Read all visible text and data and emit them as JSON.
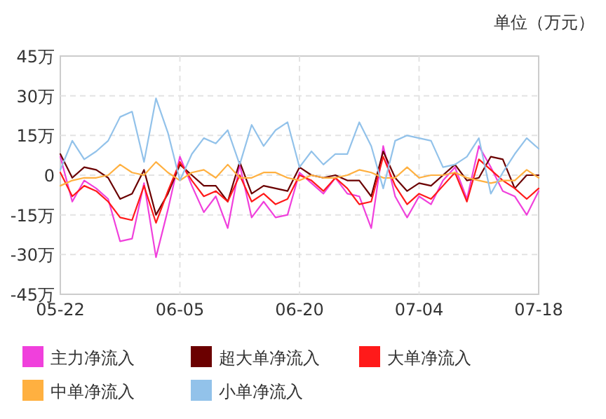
{
  "chart_data": {
    "type": "line",
    "categories": [
      "05-22",
      null,
      null,
      null,
      null,
      null,
      null,
      null,
      null,
      null,
      "06-05",
      null,
      null,
      null,
      null,
      null,
      null,
      null,
      null,
      null,
      "06-20",
      null,
      null,
      null,
      null,
      null,
      null,
      null,
      null,
      null,
      "07-04",
      null,
      null,
      null,
      null,
      null,
      null,
      null,
      null,
      null,
      "07-18"
    ],
    "ylim": [
      -45,
      45
    ],
    "yticks": [
      {
        "value": -45,
        "label": "-45万"
      },
      {
        "value": -30,
        "label": "-30万"
      },
      {
        "value": -15,
        "label": "-15万"
      },
      0,
      {
        "value": 15,
        "label": "15万"
      },
      {
        "value": 30,
        "label": "30万"
      },
      {
        "value": 45,
        "label": "45万"
      }
    ],
    "grid": true,
    "legend": "bottom",
    "marker": "none",
    "line_style": "solid",
    "annotations": [
      "单位（万元）"
    ],
    "series": [
      {
        "name": "主力净流入",
        "color": "#f040dc",
        "values": [
          7,
          -10,
          -2,
          -5,
          -9,
          -25,
          -24,
          -3,
          -31,
          -13,
          7,
          -4,
          -14,
          -8,
          -20,
          4,
          -16,
          -10,
          -16,
          -15,
          1,
          -3,
          -7,
          -1,
          -7,
          -8,
          -20,
          11,
          -8,
          -16,
          -8,
          -11,
          -2,
          3,
          -9,
          11,
          3,
          -6,
          -8,
          -15,
          -6
        ]
      },
      {
        "name": "超大单净流入",
        "color": "#6b0000",
        "values": [
          8,
          -1,
          3,
          2,
          -1,
          -9,
          -7,
          2,
          -15,
          -7,
          4,
          0,
          -4,
          -4,
          -10,
          5,
          -7,
          -4,
          -5,
          -6,
          3,
          0,
          -1,
          0,
          -2,
          -2,
          -8,
          9,
          -1,
          -6,
          -3,
          -4,
          0,
          4,
          -2,
          -1,
          7,
          6,
          -5,
          0,
          0
        ]
      },
      {
        "name": "大单净流入",
        "color": "#ff1a1a",
        "values": [
          1,
          -8,
          -4,
          -6,
          -10,
          -16,
          -17,
          -4,
          -18,
          -6,
          5,
          -2,
          -8,
          -6,
          -10,
          0,
          -10,
          -7,
          -11,
          -9,
          0,
          -2,
          -6,
          -1,
          -5,
          -11,
          -10,
          7,
          -4,
          -11,
          -7,
          -9,
          -4,
          1,
          -10,
          6,
          2,
          -2,
          -5,
          -9,
          -5
        ]
      },
      {
        "name": "中单净流入",
        "color": "#ffb040",
        "values": [
          -4,
          -2,
          -1,
          -1,
          0,
          4,
          1,
          0,
          5,
          1,
          -2,
          1,
          2,
          -1,
          4,
          -1,
          -1,
          1,
          1,
          -1,
          -2,
          0,
          -1,
          -1,
          0,
          2,
          1,
          -1,
          -1,
          3,
          -1,
          0,
          0,
          1,
          -1,
          -2,
          -3,
          -2,
          -2,
          2,
          -1
        ]
      },
      {
        "name": "小单净流入",
        "color": "#92c2ea",
        "values": [
          2,
          13,
          6,
          9,
          13,
          22,
          24,
          5,
          29,
          16,
          -2,
          8,
          14,
          12,
          17,
          4,
          19,
          11,
          17,
          20,
          3,
          9,
          4,
          8,
          8,
          20,
          11,
          -5,
          13,
          15,
          14,
          13,
          3,
          4,
          7,
          14,
          -7,
          1,
          8,
          14,
          10
        ]
      }
    ]
  }
}
